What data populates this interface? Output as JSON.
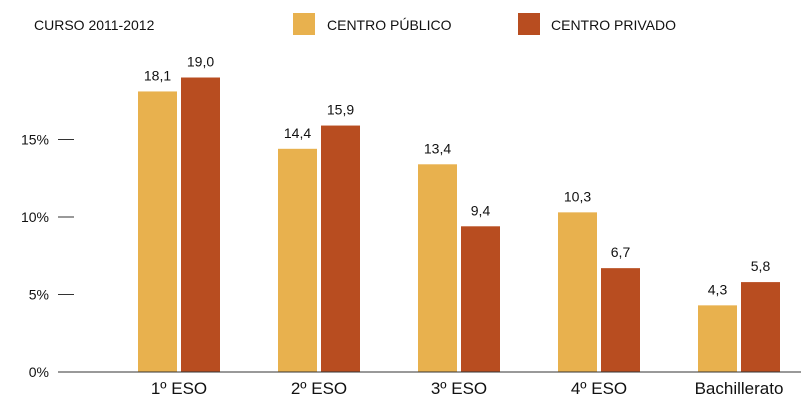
{
  "chart_data": {
    "type": "bar",
    "subtitle": "CURSO 2011-2012",
    "categories": [
      "1º ESO",
      "2º ESO",
      "3º ESO",
      "4º ESO",
      "Bachillerato"
    ],
    "series": [
      {
        "name": "CENTRO PÚBLICO",
        "color": "#E8B14E",
        "values": [
          18.1,
          14.4,
          13.4,
          10.3,
          4.3
        ],
        "labels": [
          "18,1",
          "14,4",
          "13,4",
          "10,3",
          "4,3"
        ]
      },
      {
        "name": "CENTRO PRIVADO",
        "color": "#B84D20",
        "values": [
          19.0,
          15.9,
          9.4,
          6.7,
          5.8
        ],
        "labels": [
          "19,0",
          "15,9",
          "9,4",
          "6,7",
          "5,8"
        ]
      }
    ],
    "yticks": [
      {
        "value": 0,
        "label": "0%"
      },
      {
        "value": 5,
        "label": "5%"
      },
      {
        "value": 10,
        "label": "10%"
      },
      {
        "value": 15,
        "label": "15%"
      }
    ],
    "ylim": [
      0,
      20
    ],
    "legend_position": "top",
    "grid": false
  }
}
